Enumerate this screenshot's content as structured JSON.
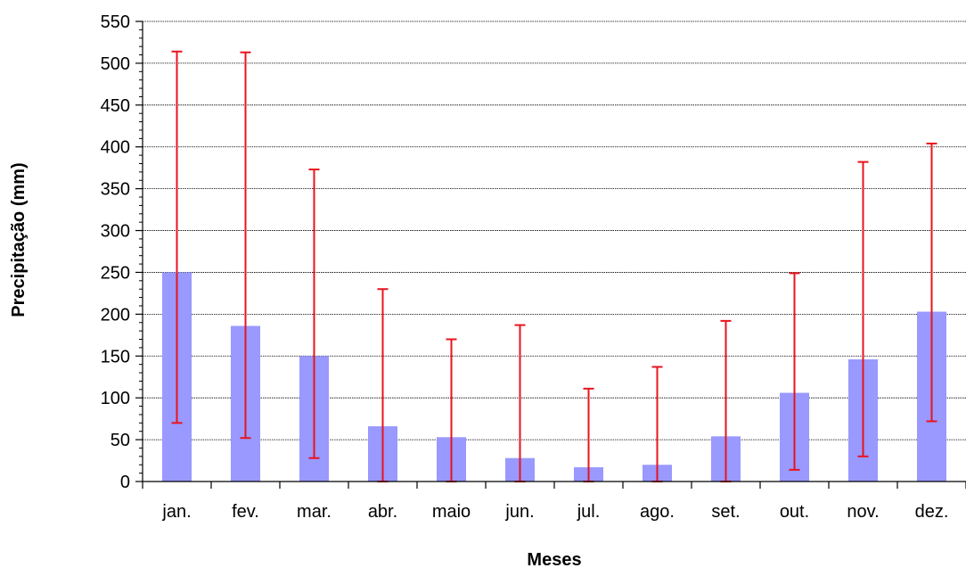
{
  "chart_data": {
    "type": "bar",
    "title": "",
    "xlabel": "Meses",
    "ylabel": "Precipitação (mm)",
    "categories": [
      "jan.",
      "fev.",
      "mar.",
      "abr.",
      "maio",
      "jun.",
      "jul.",
      "ago.",
      "set.",
      "out.",
      "nov.",
      "dez."
    ],
    "series": [
      {
        "values": [
          250,
          186,
          150,
          66,
          53,
          28,
          17,
          20,
          54,
          106,
          146,
          203
        ],
        "error_low": [
          70,
          52,
          28,
          0,
          0,
          0,
          0,
          0,
          0,
          14,
          30,
          72
        ],
        "error_high": [
          514,
          513,
          373,
          230,
          170,
          187,
          111,
          137,
          192,
          249,
          382,
          404
        ]
      }
    ],
    "ylim": [
      0,
      550
    ],
    "yticks": [
      0,
      50,
      100,
      150,
      200,
      250,
      300,
      350,
      400,
      450,
      500,
      550
    ],
    "grid": true,
    "legend": "none",
    "colors": {
      "bar": "#9999ff",
      "error_bar": "#e8141e",
      "grid": "#000000",
      "axis": "#000000"
    }
  }
}
